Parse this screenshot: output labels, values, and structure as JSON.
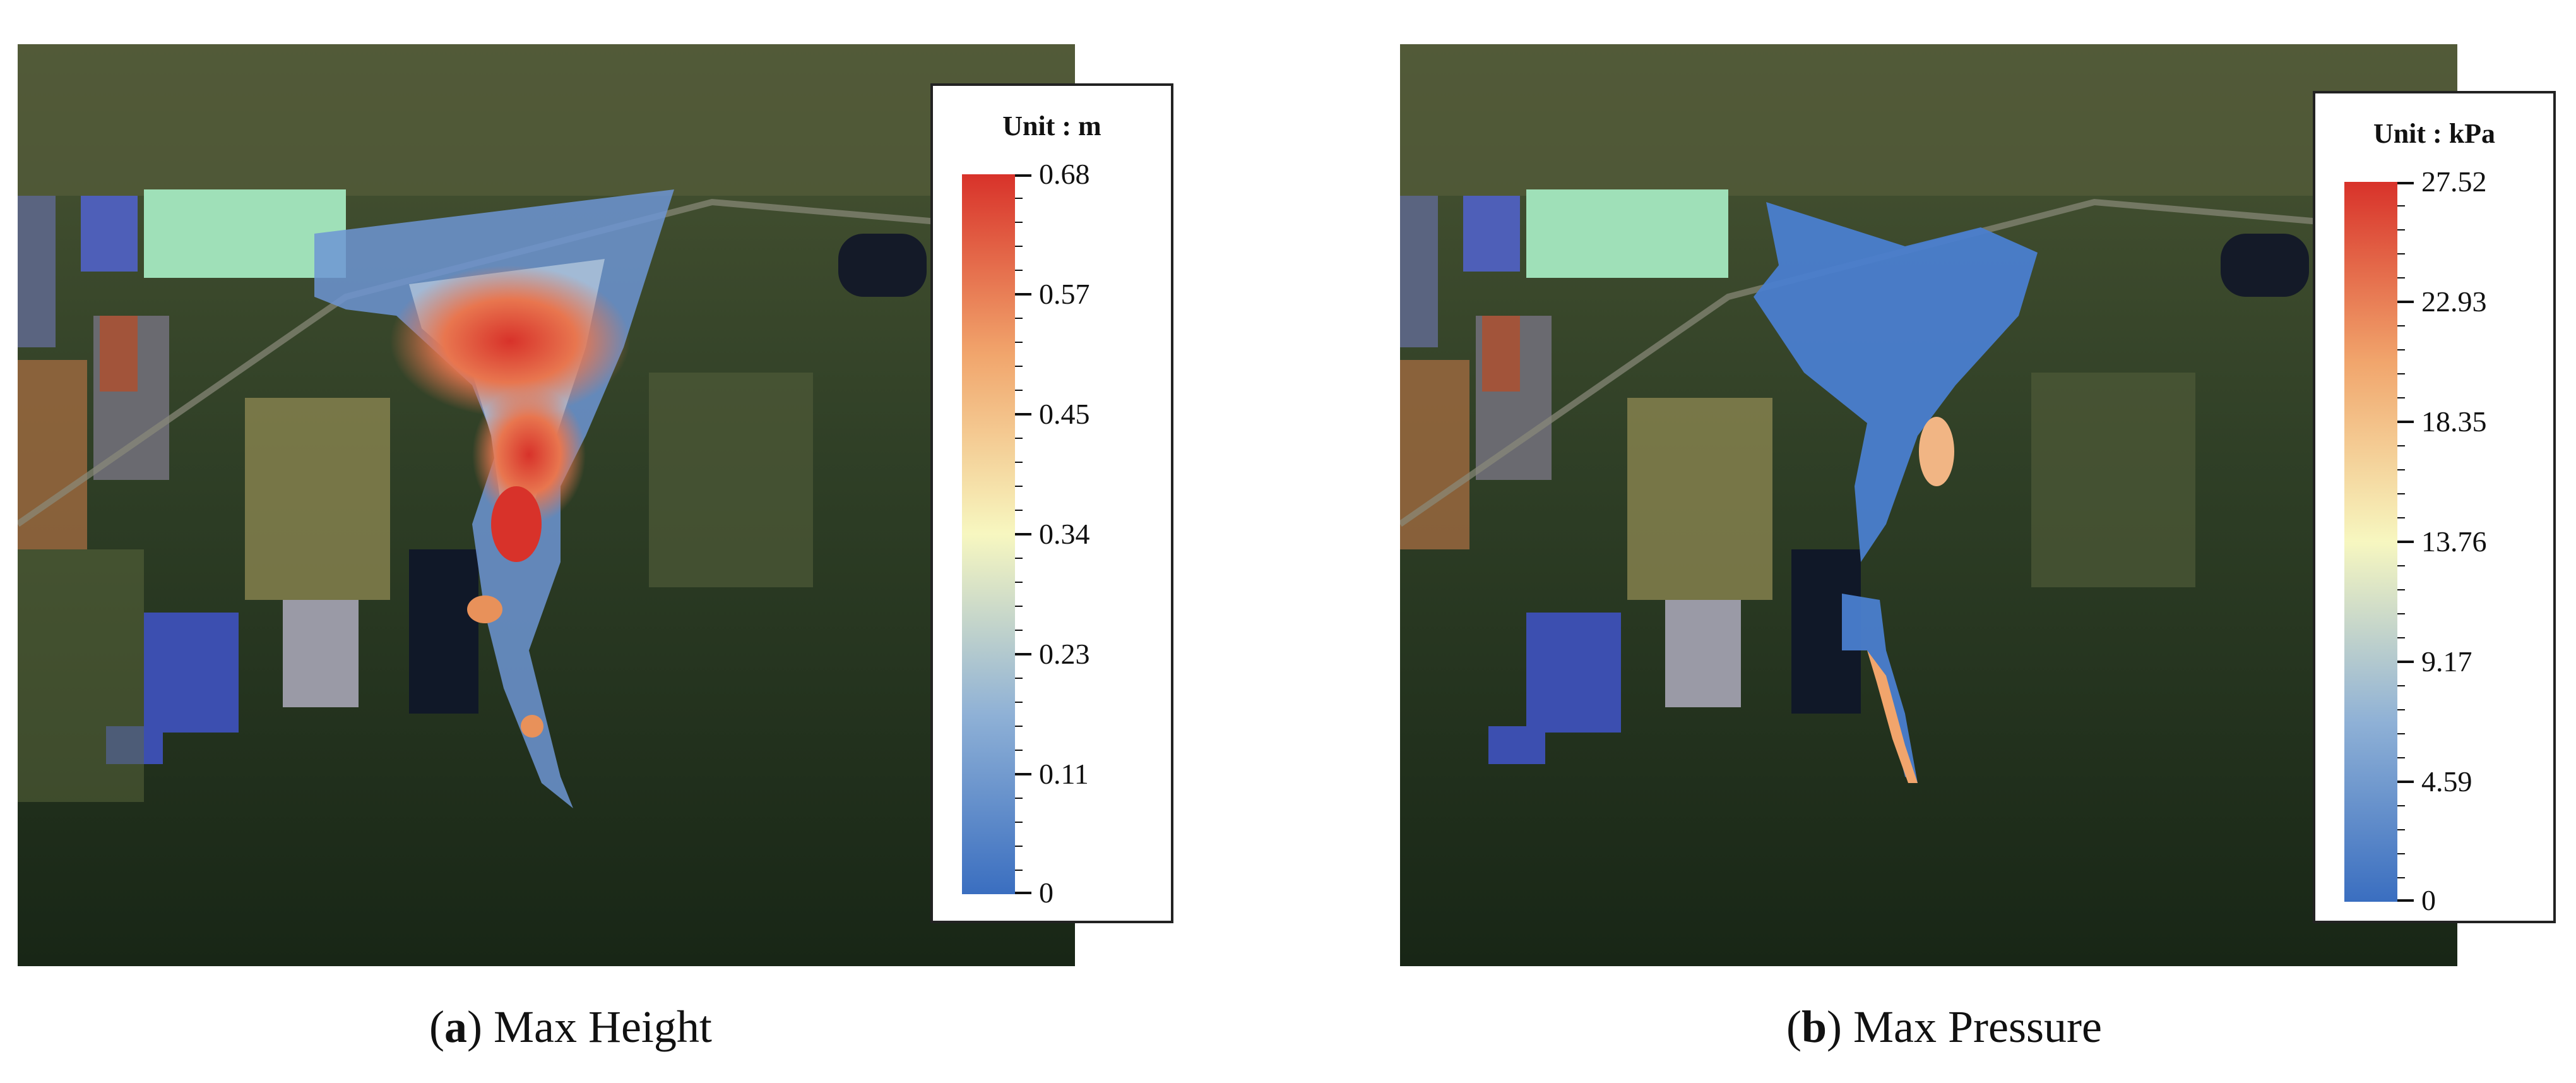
{
  "panels": [
    {
      "id": "a",
      "caption_letter": "a",
      "caption_text": "Max Height",
      "legend": {
        "title": "Unit : m",
        "ticks": [
          "0.68",
          "0.57",
          "0.45",
          "0.34",
          "0.23",
          "0.11",
          "0"
        ]
      }
    },
    {
      "id": "b",
      "caption_letter": "b",
      "caption_text": "Max Pressure",
      "legend": {
        "title": "Unit : kPa",
        "ticks": [
          "27.52",
          "22.93",
          "18.35",
          "13.76",
          "9.17",
          "4.59",
          "0"
        ]
      }
    }
  ],
  "colors": {
    "scale_low": "#3a6ec0",
    "scale_mid": "#f7f7c0",
    "scale_high": "#d8322a",
    "forest": "#1f2f1c",
    "field": "#6f6f43"
  }
}
